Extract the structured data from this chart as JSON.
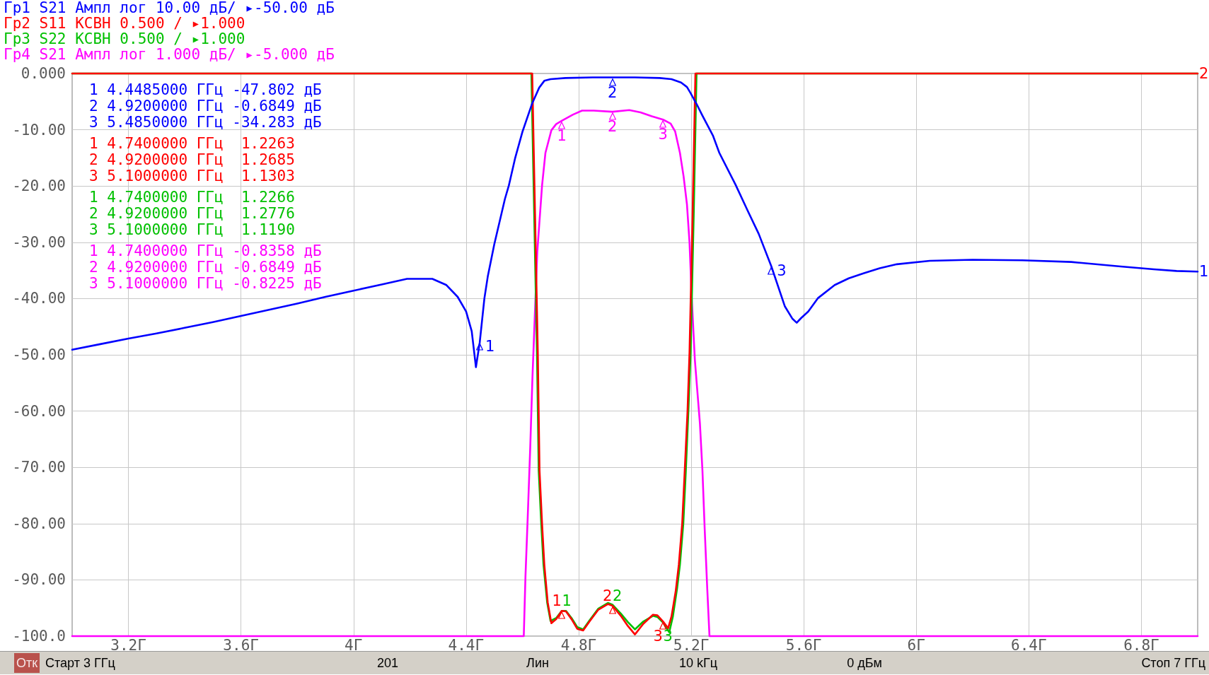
{
  "chart_data": {
    "type": "line",
    "xlim": [
      3,
      7
    ],
    "ylim": [
      -100,
      0
    ],
    "xticks": [
      {
        "value": 3.2,
        "label": "3.2Г"
      },
      {
        "value": 3.6,
        "label": "3.6Г"
      },
      {
        "value": 4,
        "label": "4Г"
      },
      {
        "value": 4.4,
        "label": "4.4Г"
      },
      {
        "value": 4.8,
        "label": "4.8Г"
      },
      {
        "value": 5.2,
        "label": "5.2Г"
      },
      {
        "value": 5.6,
        "label": "5.6Г"
      },
      {
        "value": 6,
        "label": "6Г"
      },
      {
        "value": 6.4,
        "label": "6.4Г"
      },
      {
        "value": 6.8,
        "label": "6.8Г"
      }
    ],
    "yticks": [
      {
        "value": 0,
        "label": "0.000"
      },
      {
        "value": -10,
        "label": "-10.00"
      },
      {
        "value": -20,
        "label": "-20.00"
      },
      {
        "value": -30,
        "label": "-30.00"
      },
      {
        "value": -40,
        "label": "-40.00"
      },
      {
        "value": -50,
        "label": "-50.00"
      },
      {
        "value": -60,
        "label": "-60.00"
      },
      {
        "value": -70,
        "label": "-70.00"
      },
      {
        "value": -80,
        "label": "-80.00"
      },
      {
        "value": -90,
        "label": "-90.00"
      },
      {
        "value": -100,
        "label": "-100.0"
      }
    ],
    "grid": true,
    "legend": "top left",
    "series": [
      {
        "name": "Гр1 S21 Ампл лог 10.00 дБ/ ▸-50.00 дБ",
        "color": "#0000ff",
        "x": [
          3,
          3.1,
          3.2,
          3.3,
          3.4,
          3.5,
          3.6,
          3.7,
          3.8,
          3.9,
          4,
          4.1,
          4.19,
          4.28,
          4.33,
          4.37,
          4.4,
          4.42,
          4.435,
          4.4485,
          4.465,
          4.477,
          4.5,
          4.538,
          4.552,
          4.574,
          4.6,
          4.635,
          4.66,
          4.678,
          4.7,
          4.753,
          4.85,
          4.92,
          5,
          5.088,
          5.13,
          5.164,
          5.185,
          5.198,
          5.22,
          5.239,
          5.277,
          5.3,
          5.358,
          5.4,
          5.44,
          5.485,
          5.533,
          5.56,
          5.575,
          5.59,
          5.616,
          5.651,
          5.71,
          5.76,
          5.814,
          5.87,
          5.931,
          6.048,
          6.2,
          6.376,
          6.551,
          6.726,
          6.844,
          6.925,
          7
        ],
        "values": [
          -49.1,
          -48.1,
          -47.1,
          -46.2,
          -45.2,
          -44.2,
          -43.1,
          -42,
          -40.9,
          -39.7,
          -38.6,
          -37.5,
          -36.5,
          -36.5,
          -37.6,
          -39.7,
          -42.3,
          -45.8,
          -52.2,
          -47.8,
          -40,
          -36.1,
          -30.4,
          -22.3,
          -19.9,
          -15.1,
          -10.4,
          -5.3,
          -2.5,
          -1.3,
          -1,
          -0.8,
          -0.7,
          -0.7,
          -0.7,
          -0.8,
          -1,
          -1.6,
          -2.4,
          -3.5,
          -5.5,
          -7.4,
          -11,
          -14.1,
          -19.8,
          -24.3,
          -28.5,
          -34.3,
          -41.4,
          -43.6,
          -44.3,
          -43.5,
          -42.3,
          -39.9,
          -37.6,
          -36.4,
          -35.5,
          -34.6,
          -33.9,
          -33.3,
          -33.1,
          -33.2,
          -33.5,
          -34.3,
          -34.8,
          -35.1,
          -35.2
        ]
      },
      {
        "name": "Гр2 S11 КСВН 0.500 / ▸1.000",
        "color": "#ff0000",
        "x": [
          3,
          4.635,
          4.645,
          4.655,
          4.661,
          4.67,
          4.678,
          4.69,
          4.703,
          4.72,
          4.74,
          4.755,
          4.775,
          4.795,
          4.816,
          4.84,
          4.87,
          4.904,
          4.92,
          4.95,
          4.975,
          5,
          5.03,
          5.064,
          5.08,
          5.1,
          5.118,
          5.13,
          5.145,
          5.156,
          5.168,
          5.177,
          5.187,
          5.194,
          5.205,
          5.215,
          7
        ],
        "values": [
          0,
          0,
          -25,
          -50,
          -70.6,
          -80,
          -87.3,
          -94,
          -97.7,
          -97,
          -95.5,
          -95.6,
          -97,
          -98.7,
          -99,
          -97.3,
          -95.3,
          -94.3,
          -94.6,
          -96.4,
          -98.2,
          -99.7,
          -97.8,
          -96.2,
          -96.3,
          -97.4,
          -98.6,
          -96.5,
          -92,
          -87.3,
          -80,
          -70.6,
          -60,
          -49.6,
          -25,
          0,
          0
        ]
      },
      {
        "name": "Гр3 S22 КСВН 0.500 / ▸1.000",
        "color": "#00c000",
        "x": [
          3,
          4.632,
          4.642,
          4.652,
          4.658,
          4.667,
          4.675,
          4.688,
          4.7,
          4.72,
          4.74,
          4.755,
          4.775,
          4.795,
          4.816,
          4.84,
          4.87,
          4.904,
          4.92,
          4.95,
          4.975,
          5,
          5.03,
          5.064,
          5.08,
          5.1,
          5.122,
          5.135,
          5.15,
          5.16,
          5.172,
          5.181,
          5.19,
          5.198,
          5.209,
          5.219,
          7
        ],
        "values": [
          0,
          0,
          -25,
          -50,
          -70.6,
          -80,
          -87.3,
          -94,
          -97.3,
          -96.8,
          -95.5,
          -95.5,
          -96.8,
          -98.4,
          -98.8,
          -97.1,
          -95.1,
          -94.1,
          -94.4,
          -96,
          -97.5,
          -98.8,
          -97.4,
          -96.4,
          -96.6,
          -97.6,
          -99.3,
          -96.5,
          -91.5,
          -87.3,
          -80,
          -70.6,
          -60,
          -49.6,
          -25,
          0,
          0
        ]
      },
      {
        "name": "Гр4 S21 Ампл лог 1.000 дБ/ ▸-5.000 дБ",
        "color": "#ff00ff",
        "x": [
          3,
          4.605,
          4.611,
          4.619,
          4.628,
          4.636,
          4.653,
          4.67,
          4.682,
          4.703,
          4.72,
          4.74,
          4.78,
          4.812,
          4.854,
          4.92,
          4.98,
          5.02,
          5.06,
          5.1,
          5.127,
          5.143,
          5.16,
          5.173,
          5.185,
          5.194,
          5.202,
          5.213,
          5.231,
          5.24,
          5.248,
          5.257,
          5.265,
          7
        ],
        "values": [
          -100,
          -100,
          -89.4,
          -78.9,
          -66.4,
          -53.8,
          -31.7,
          -19.9,
          -14.1,
          -10.1,
          -9,
          -8.4,
          -7.3,
          -6.6,
          -6.6,
          -6.8,
          -6.5,
          -6.9,
          -7.6,
          -8.2,
          -8.9,
          -10.3,
          -14.1,
          -18.3,
          -23.3,
          -30,
          -40,
          -50.9,
          -62.2,
          -70.6,
          -81,
          -91.5,
          -100,
          -100
        ]
      }
    ],
    "annotations": [
      "1 4.4485000 ГГц -47.802 дБ",
      "2 4.9200000 ГГц -0.6849 дБ",
      "3 5.4850000 ГГц -34.283 дБ",
      "1 4.7400000 ГГц  1.2263",
      "2 4.9200000 ГГц  1.2685",
      "3 5.1000000 ГГц  1.1303",
      "1 4.7400000 ГГц  1.2266",
      "2 4.9200000 ГГц  1.2776",
      "3 5.1000000 ГГц  1.1190",
      "1 4.7400000 ГГц -0.8358 дБ",
      "2 4.9200000 ГГц -0.6849 дБ",
      "3 5.1000000 ГГц -0.8225 дБ",
      "Отк",
      "Старт 3 ГГц",
      "201",
      "Лин",
      "10 kГц",
      "0 дБм",
      "Стоп 7 ГГц",
      {
        "text": "1",
        "x": 4.4485,
        "y": -47.8
      },
      {
        "text": "2",
        "x": 4.92,
        "y": -0.7
      },
      {
        "text": "3",
        "x": 5.485,
        "y": -34.3
      },
      {
        "text": "1",
        "x": 4.74,
        "y": -95.5
      },
      {
        "text": "2",
        "x": 4.92,
        "y": -94.6
      },
      {
        "text": "3",
        "x": 5.1,
        "y": -97.4
      },
      {
        "text": "1",
        "x": 4.74,
        "y": -95.5
      },
      {
        "text": "2",
        "x": 4.92,
        "y": -94.4
      },
      {
        "text": "3",
        "x": 5.1,
        "y": -97.6
      },
      {
        "text": "1",
        "x": 4.74,
        "y": -8.4
      },
      {
        "text": "2",
        "x": 4.92,
        "y": -6.8
      },
      {
        "text": "3",
        "x": 5.1,
        "y": -8.2
      },
      {
        "text": "1",
        "x": 7,
        "y": -35.2
      },
      {
        "text": "2",
        "x": 7,
        "y": 0
      }
    ]
  }
}
